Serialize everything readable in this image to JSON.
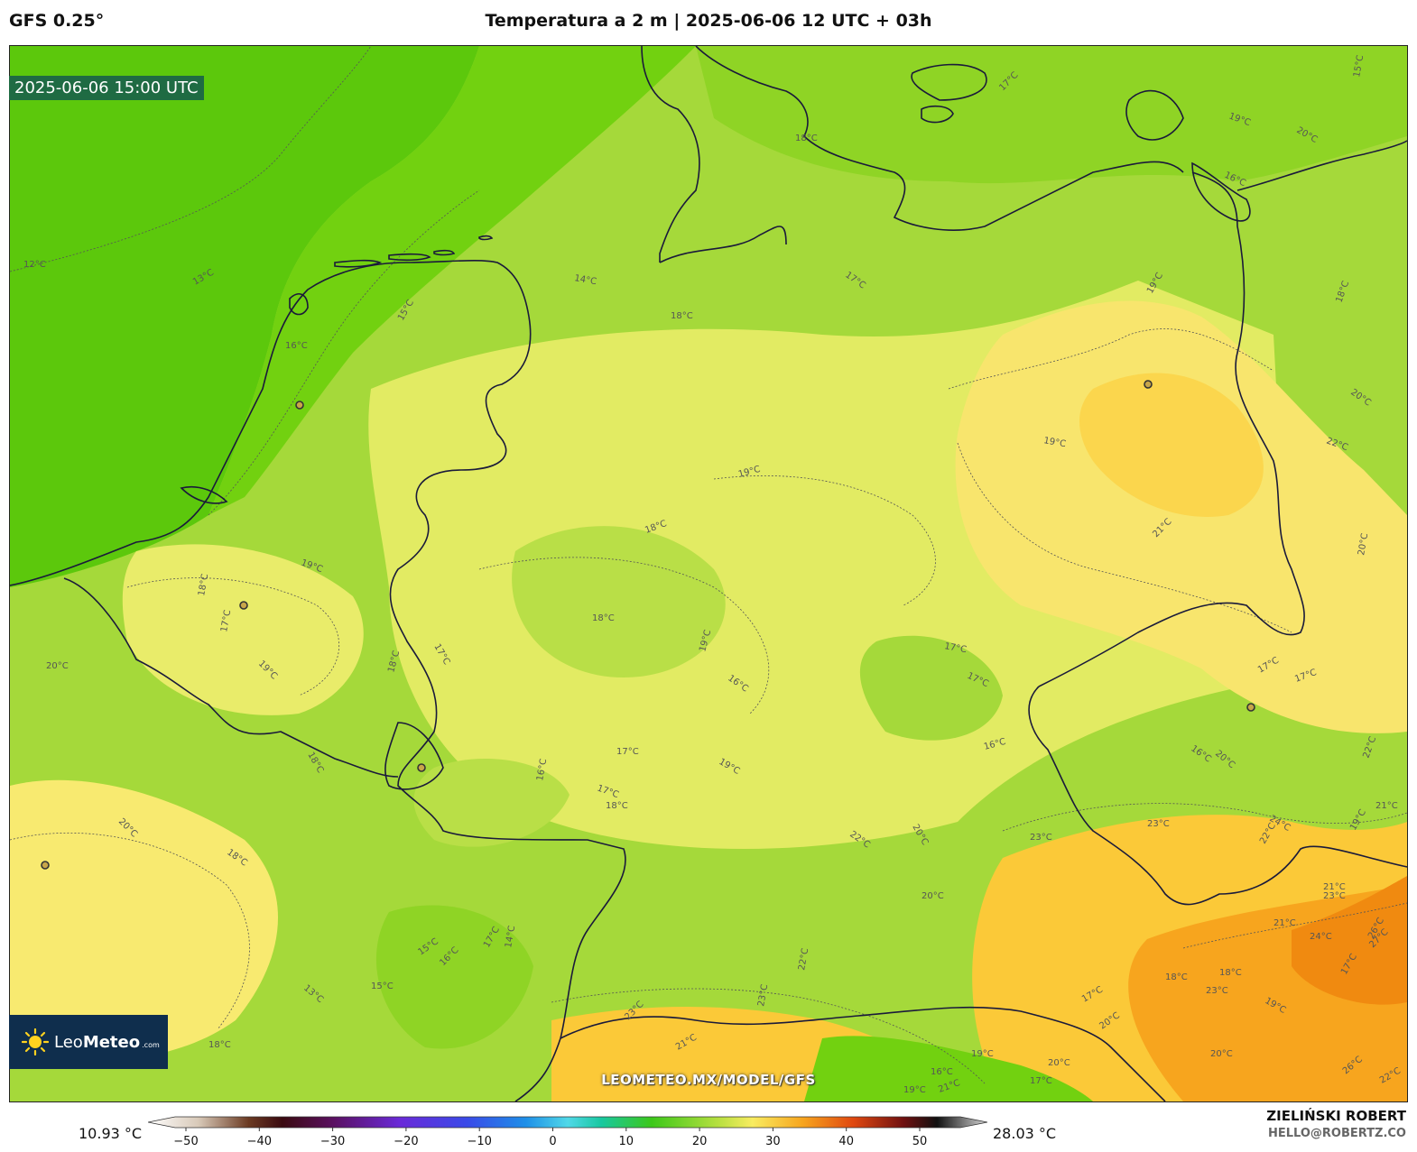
{
  "header": {
    "model": "GFS 0.25°",
    "title": "Temperatura a 2 m | 2025-06-06 12 UTC + 03h"
  },
  "map": {
    "valid_time": "2025-06-06 15:00 UTC",
    "watermark": "LEOMETEO.MX/MODEL/GFS",
    "logo": {
      "brand_light": "Leo",
      "brand_bold": "Meteo",
      "suffix": ".com"
    },
    "contour_labels": [
      "12°C",
      "13°C",
      "15°C",
      "16°C",
      "17°C",
      "18°C",
      "19°C",
      "20°C",
      "16°C",
      "15°C",
      "14°C",
      "18°C",
      "17°C",
      "19°C",
      "18°C",
      "19°C",
      "20°C",
      "22°C",
      "21°C",
      "20°C",
      "19°C",
      "18°C",
      "17°C",
      "18°C",
      "19°C",
      "16°C",
      "17°C",
      "17°C",
      "18°C",
      "19°C",
      "20°C",
      "19°C",
      "18°C",
      "17°C",
      "18°C",
      "16°C",
      "16°C",
      "17°C",
      "17°C",
      "19°C",
      "17°C",
      "16°C",
      "17°C",
      "18°C",
      "19°C",
      "20°C",
      "18°C",
      "20°C",
      "22°C",
      "23°C",
      "23°C",
      "24°C",
      "22°C",
      "21°C",
      "23°C",
      "20°C",
      "20°C",
      "22°C",
      "21°C",
      "17°C",
      "16°C",
      "15°C",
      "14°C",
      "13°C",
      "15°C",
      "23°C",
      "23°C",
      "21°C",
      "22°C",
      "17°C",
      "18°C",
      "19°C",
      "20°C",
      "18°C",
      "17°C",
      "21°C",
      "24°C",
      "26°C",
      "27°C",
      "26°C",
      "22°C",
      "23°C",
      "20°C",
      "19°C",
      "16°C",
      "21°C",
      "19°C",
      "17°C",
      "20°C",
      "18°C"
    ],
    "palette": {
      "sea_cool": "#5cc80c",
      "cool": "#72d110",
      "mild": "#9dd932",
      "mid": "#c7e44f",
      "warm": "#e9ec6a",
      "warmer": "#f8e56d",
      "hot": "#fbc938",
      "hotter": "#f7a51e",
      "hottest": "#f08a10"
    }
  },
  "colorbar": {
    "min_label": "10.93 °C",
    "max_label": "28.03 °C",
    "ticks": [
      "−50",
      "−40",
      "−30",
      "−20",
      "−10",
      "0",
      "10",
      "20",
      "30",
      "40",
      "50"
    ]
  },
  "credits": {
    "author": "ZIELIŃSKI ROBERT",
    "email": "HELLO@ROBERTZ.CO"
  }
}
